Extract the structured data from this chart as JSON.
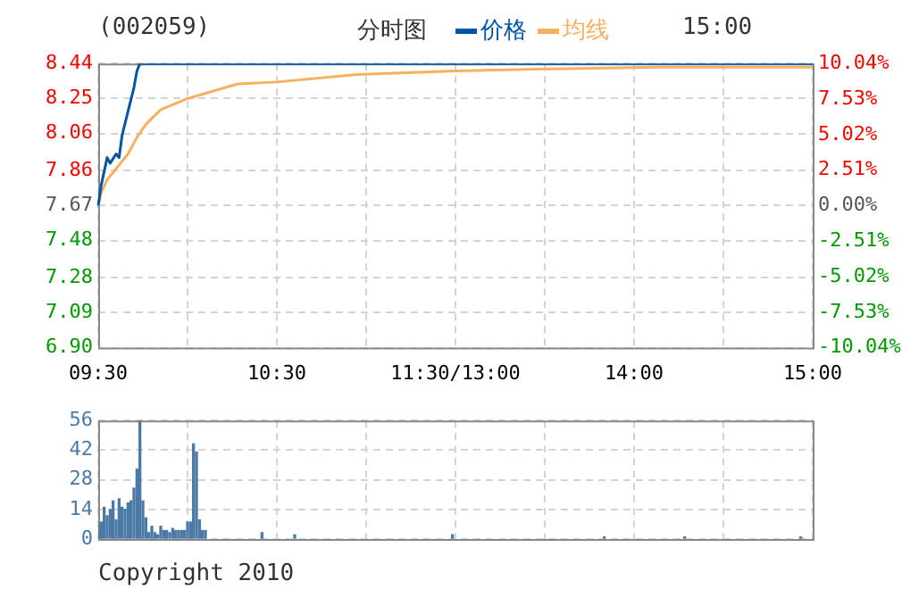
{
  "chart_data": [
    {
      "type": "line",
      "title": "(002059)",
      "subtitle": "分时图",
      "annotations": [
        "15:00"
      ],
      "legend": "top",
      "grid": true,
      "marker": "none",
      "line_style": "solid",
      "categories": [
        "09:30",
        null,
        null,
        null,
        null,
        null,
        null,
        null,
        null,
        null,
        null,
        null,
        null,
        null,
        null,
        null,
        null,
        null,
        null,
        null,
        null,
        null,
        null,
        null,
        null,
        null,
        null,
        null,
        null,
        null,
        null,
        null,
        null,
        null,
        null,
        null,
        null,
        null,
        null,
        null,
        null,
        null,
        null,
        null,
        null,
        null,
        null,
        null,
        null,
        null,
        null,
        null,
        null,
        null,
        null,
        null,
        null,
        null,
        null,
        null,
        "10:30",
        null,
        null,
        null,
        null,
        null,
        null,
        null,
        null,
        null,
        null,
        null,
        null,
        null,
        null,
        null,
        null,
        null,
        null,
        null,
        null,
        null,
        null,
        null,
        null,
        null,
        null,
        null,
        null,
        null,
        null,
        null,
        null,
        null,
        null,
        null,
        null,
        null,
        null,
        null,
        null,
        null,
        null,
        null,
        null,
        null,
        null,
        null,
        null,
        null,
        null,
        null,
        null,
        null,
        null,
        null,
        null,
        null,
        null,
        null,
        "11:30/13:00",
        null,
        null,
        null,
        null,
        null,
        null,
        null,
        null,
        null,
        null,
        null,
        null,
        null,
        null,
        null,
        null,
        null,
        null,
        null,
        null,
        null,
        null,
        null,
        null,
        null,
        null,
        null,
        null,
        null,
        null,
        null,
        null,
        null,
        null,
        null,
        null,
        null,
        null,
        null,
        null,
        null,
        null,
        null,
        null,
        null,
        null,
        null,
        null,
        null,
        null,
        null,
        null,
        null,
        null,
        null,
        null,
        null,
        null,
        null,
        "14:00",
        null,
        null,
        null,
        null,
        null,
        null,
        null,
        null,
        null,
        null,
        null,
        null,
        null,
        null,
        null,
        null,
        null,
        null,
        null,
        null,
        null,
        null,
        null,
        null,
        null,
        null,
        null,
        null,
        null,
        null,
        null,
        null,
        null,
        null,
        null,
        null,
        null,
        null,
        null,
        null,
        null,
        null,
        null,
        null,
        null,
        null,
        null,
        null,
        null,
        null,
        null,
        null,
        null,
        null,
        null,
        null,
        null,
        null,
        null,
        "15:00"
      ],
      "ylim": [
        6.9,
        8.44
      ],
      "yticks": [
        {
          "value": 6.9,
          "label": "6.90"
        },
        7.09,
        7.28,
        7.48,
        7.67,
        7.86,
        8.06,
        8.25,
        8.44
      ],
      "y2lim": [
        -10.04,
        10.04
      ],
      "y2ticks": [
        {
          "value": -10.04,
          "label": "-10.04%"
        },
        {
          "value": -7.53,
          "label": "-7.53%"
        },
        {
          "value": -5.02,
          "label": "-5.02%"
        },
        {
          "value": -2.51,
          "label": "-2.51%"
        },
        {
          "value": 0,
          "label": "0.00%"
        },
        {
          "value": 2.51,
          "label": "2.51%"
        },
        {
          "value": 5.02,
          "label": "5.02%"
        },
        {
          "value": 7.53,
          "label": "7.53%"
        },
        {
          "value": 10.04,
          "label": "10.04%"
        }
      ],
      "series": [
        {
          "name": "价格",
          "color": "#0055a5",
          "values": [
            7.67,
            7.78,
            null,
            7.93,
            7.9,
            null,
            7.95,
            7.93,
            8.05,
            null,
            8.18,
            null,
            8.31,
            8.4,
            8.44,
            null,
            null,
            null,
            null,
            null,
            null,
            null,
            null,
            null,
            null,
            null,
            null,
            null,
            null,
            null,
            null,
            null,
            null,
            null,
            null,
            null,
            null,
            null,
            null,
            null,
            null,
            null,
            null,
            null,
            null,
            null,
            null,
            null,
            null,
            null,
            null,
            null,
            null,
            null,
            null,
            null,
            null,
            null,
            null,
            null,
            null,
            null,
            null,
            null,
            null,
            null,
            null,
            null,
            null,
            null,
            null,
            null,
            null,
            null,
            null,
            null,
            null,
            null,
            null,
            null,
            null,
            null,
            null,
            null,
            null,
            null,
            null,
            null,
            null,
            null,
            null,
            null,
            null,
            null,
            null,
            null,
            null,
            null,
            null,
            null,
            null,
            null,
            null,
            null,
            null,
            null,
            null,
            null,
            null,
            null,
            null,
            null,
            null,
            null,
            null,
            null,
            null,
            null,
            null,
            null,
            null,
            null,
            null,
            null,
            null,
            null,
            null,
            null,
            null,
            null,
            null,
            null,
            null,
            null,
            null,
            null,
            null,
            null,
            null,
            null,
            null,
            null,
            null,
            null,
            null,
            null,
            null,
            null,
            null,
            null,
            null,
            null,
            null,
            null,
            null,
            null,
            null,
            null,
            null,
            null,
            null,
            null,
            null,
            null,
            null,
            null,
            null,
            null,
            null,
            null,
            null,
            null,
            null,
            null,
            null,
            null,
            null,
            null,
            null,
            null,
            null,
            null,
            null,
            null,
            null,
            null,
            null,
            null,
            null,
            null,
            null,
            null,
            null,
            null,
            null,
            null,
            null,
            null,
            null,
            null,
            null,
            null,
            null,
            null,
            null,
            null,
            null,
            null,
            null,
            null,
            null,
            null,
            null,
            null,
            null,
            null,
            null,
            null,
            null,
            null,
            null,
            null,
            null,
            null,
            null,
            null,
            null,
            null,
            null,
            null,
            null,
            null,
            null,
            null,
            null,
            null,
            null,
            null,
            null,
            null,
            8.44
          ]
        },
        {
          "name": "均线",
          "color": "#f5b060",
          "values": [
            7.67,
            7.74,
            null,
            7.81,
            null,
            null,
            null,
            7.89,
            null,
            null,
            7.95,
            null,
            null,
            8.04,
            null,
            null,
            8.11,
            null,
            null,
            null,
            null,
            8.19,
            null,
            null,
            null,
            null,
            null,
            null,
            null,
            null,
            8.25,
            null,
            null,
            null,
            null,
            null,
            null,
            null,
            null,
            null,
            null,
            null,
            null,
            null,
            null,
            null,
            null,
            8.33,
            null,
            null,
            null,
            null,
            null,
            null,
            null,
            null,
            null,
            null,
            null,
            null,
            8.34,
            null,
            null,
            null,
            null,
            null,
            null,
            null,
            null,
            null,
            null,
            null,
            null,
            null,
            null,
            null,
            null,
            null,
            null,
            null,
            null,
            null,
            null,
            null,
            null,
            null,
            null,
            8.38,
            null,
            null,
            null,
            null,
            null,
            null,
            null,
            null,
            null,
            null,
            null,
            null,
            null,
            null,
            null,
            null,
            null,
            null,
            null,
            null,
            null,
            null,
            null,
            null,
            null,
            null,
            null,
            null,
            null,
            null,
            null,
            null,
            8.4,
            null,
            null,
            null,
            null,
            null,
            null,
            null,
            null,
            null,
            null,
            null,
            null,
            null,
            null,
            null,
            null,
            null,
            null,
            null,
            null,
            null,
            null,
            null,
            null,
            null,
            null,
            8.41,
            null,
            null,
            null,
            null,
            null,
            null,
            null,
            null,
            null,
            null,
            null,
            null,
            null,
            null,
            null,
            null,
            null,
            null,
            null,
            null,
            null,
            null,
            null,
            null,
            null,
            null,
            null,
            null,
            null,
            null,
            null,
            null,
            null,
            null,
            null,
            null,
            null,
            null,
            null,
            null,
            null,
            8.42,
            null,
            null,
            null,
            null,
            null,
            null,
            null,
            null,
            null,
            null,
            null,
            null,
            null,
            null,
            null,
            null,
            null,
            null,
            null,
            null,
            null,
            null,
            null,
            null,
            null,
            null,
            null,
            null,
            null,
            null,
            null,
            null,
            null,
            null,
            null,
            null,
            null,
            null,
            null,
            null,
            null,
            null,
            null,
            null,
            null,
            null,
            null,
            null,
            null,
            null,
            8.42
          ]
        }
      ]
    },
    {
      "type": "bar",
      "grid": true,
      "tick_labels": "y",
      "annotations": [
        "Copyright 2010"
      ],
      "color": "#4a7aa5",
      "categories": [
        null,
        null,
        null,
        null,
        null,
        null,
        null,
        null,
        null,
        null,
        null,
        null,
        null,
        null,
        null,
        null,
        null,
        null,
        null,
        null,
        null,
        null,
        null,
        null,
        null,
        null,
        null,
        null,
        null,
        null,
        null,
        null,
        null,
        null,
        null,
        null,
        null,
        null,
        null,
        null,
        null,
        null,
        null,
        null,
        null,
        null,
        null,
        null,
        null,
        null,
        null,
        null,
        null,
        null,
        null,
        null,
        null,
        null,
        null,
        null,
        null,
        null,
        null,
        null,
        null,
        null,
        null,
        null,
        null,
        null,
        null,
        null,
        null,
        null,
        null,
        null,
        null,
        null,
        null,
        null,
        null,
        null,
        null,
        null,
        null,
        null,
        null,
        null,
        null,
        null,
        null,
        null,
        null,
        null,
        null,
        null,
        null,
        null,
        null,
        null,
        null,
        null,
        null,
        null,
        null,
        null,
        null,
        null,
        null,
        null,
        null,
        null,
        null,
        null,
        null,
        null,
        null,
        null,
        null,
        null,
        null,
        null,
        null,
        null,
        null,
        null,
        null,
        null,
        null,
        null,
        null,
        null,
        null,
        null,
        null,
        null,
        null,
        null,
        null,
        null,
        null,
        null,
        null,
        null,
        null,
        null,
        null,
        null,
        null,
        null,
        null,
        null,
        null,
        null,
        null,
        null,
        null,
        null,
        null,
        null,
        null,
        null,
        null,
        null,
        null,
        null,
        null,
        null,
        null,
        null,
        null,
        null,
        null,
        null,
        null,
        null,
        null,
        null,
        null,
        null,
        null,
        null,
        null,
        null,
        null,
        null,
        null,
        null,
        null,
        null,
        null,
        null,
        null,
        null,
        null,
        null,
        null,
        null,
        null,
        null,
        null,
        null,
        null,
        null,
        null,
        null,
        null,
        null,
        null,
        null,
        null,
        null,
        null,
        null,
        null,
        null,
        null,
        null,
        null,
        null,
        null,
        null,
        null,
        null,
        null,
        null,
        null,
        null,
        null,
        null,
        null,
        null,
        null,
        null,
        null,
        null,
        null,
        null,
        null,
        null,
        null
      ],
      "ylim": [
        0,
        56
      ],
      "yticks": [
        0,
        14,
        28,
        42,
        56
      ],
      "values": [
        6,
        8,
        15,
        11,
        14,
        18,
        9,
        19,
        15,
        14,
        17,
        18,
        24,
        33,
        56,
        18,
        10,
        3,
        6,
        3,
        2,
        6,
        4,
        4,
        3,
        5,
        4,
        4,
        4,
        4,
        8,
        8,
        45,
        41,
        9,
        4,
        4,
        null,
        null,
        null,
        null,
        null,
        null,
        null,
        null,
        null,
        null,
        null,
        null,
        null,
        null,
        null,
        null,
        null,
        null,
        3,
        null,
        null,
        null,
        null,
        null,
        null,
        null,
        null,
        null,
        null,
        2,
        null,
        null,
        null,
        null,
        null,
        null,
        null,
        null,
        null,
        null,
        null,
        null,
        null,
        null,
        null,
        null,
        null,
        null,
        null,
        null,
        null,
        null,
        null,
        null,
        null,
        null,
        null,
        null,
        null,
        null,
        null,
        null,
        null,
        null,
        null,
        null,
        null,
        null,
        null,
        null,
        null,
        null,
        null,
        null,
        null,
        null,
        null,
        null,
        null,
        null,
        null,
        null,
        2,
        null,
        null,
        null,
        null,
        null,
        null,
        null,
        null,
        null,
        null,
        null,
        null,
        null,
        null,
        null,
        null,
        null,
        null,
        null,
        null,
        null,
        null,
        null,
        null,
        null,
        null,
        null,
        null,
        null,
        null,
        null,
        null,
        null,
        null,
        null,
        null,
        null,
        null,
        null,
        null,
        null,
        null,
        null,
        null,
        null,
        null,
        null,
        null,
        null,
        null,
        1,
        null,
        null,
        null,
        null,
        null,
        null,
        null,
        null,
        null,
        null,
        null,
        null,
        null,
        null,
        null,
        null,
        null,
        null,
        null,
        null,
        null,
        null,
        null,
        null,
        null,
        null,
        1,
        null,
        null,
        null,
        null,
        null,
        null,
        null,
        null,
        null,
        null,
        null,
        null,
        null,
        null,
        null,
        null,
        null,
        null,
        null,
        null,
        null,
        null,
        null,
        null,
        null,
        null,
        null,
        null,
        null,
        null,
        null,
        null,
        null,
        null,
        null,
        null,
        null,
        null,
        1,
        null,
        null,
        null,
        null
      ]
    }
  ]
}
